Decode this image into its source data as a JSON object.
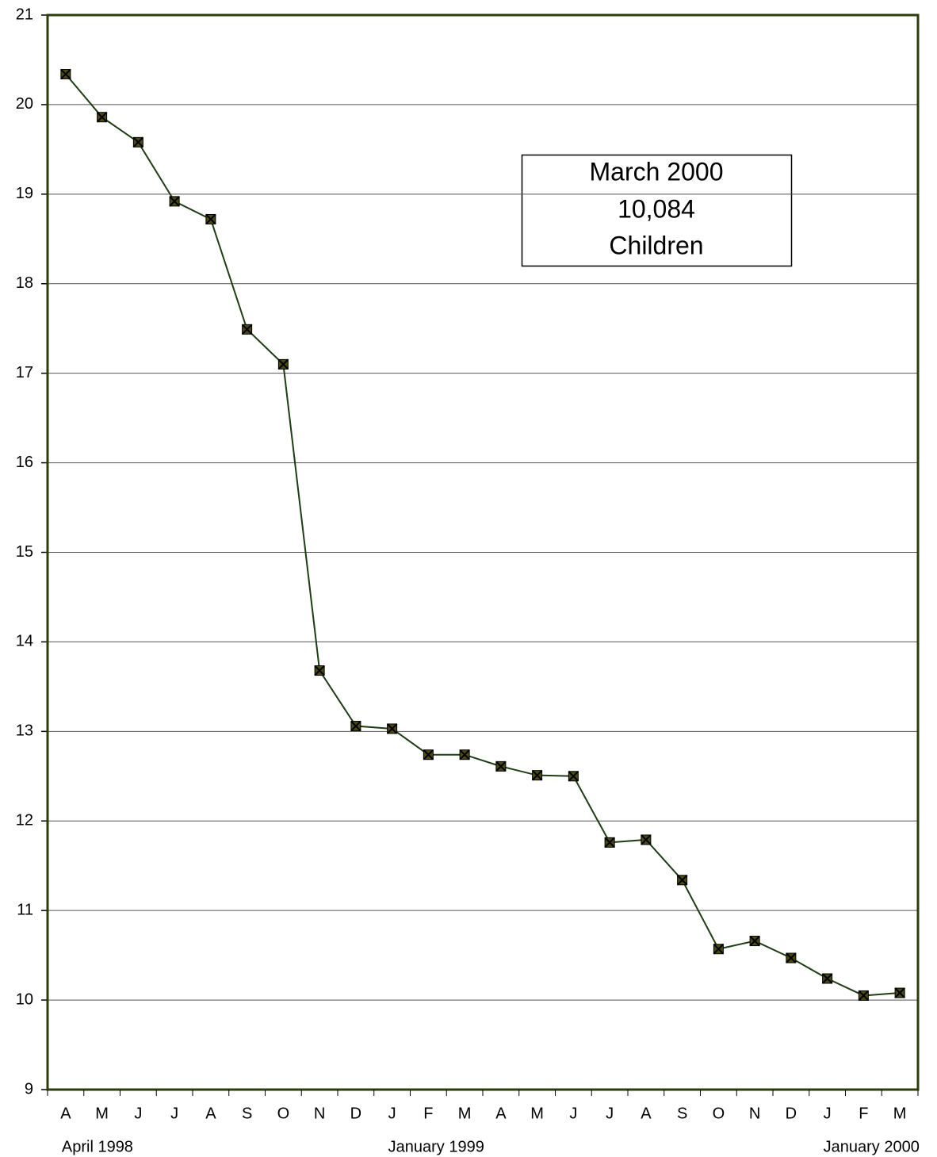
{
  "chart_data": {
    "type": "line",
    "categories": [
      "A",
      "M",
      "J",
      "J",
      "A",
      "S",
      "O",
      "N",
      "D",
      "J",
      "F",
      "M",
      "A",
      "M",
      "J",
      "J",
      "A",
      "S",
      "O",
      "N",
      "D",
      "J",
      "F",
      "M"
    ],
    "series": [
      {
        "color": "#1e3d14",
        "values": [
          20.34,
          19.86,
          19.58,
          18.92,
          18.72,
          17.49,
          17.1,
          13.68,
          13.06,
          13.03,
          12.74,
          12.74,
          12.61,
          12.51,
          12.5,
          11.76,
          11.79,
          11.34,
          10.57,
          10.66,
          10.47,
          10.24,
          10.05,
          10.08
        ]
      }
    ],
    "ylim": [
      9,
      21
    ],
    "yticks": [
      9,
      10,
      11,
      12,
      13,
      14,
      15,
      16,
      17,
      18,
      19,
      20,
      21
    ],
    "grid": true,
    "x_group_labels": [
      "April 1998",
      "January 1999",
      "January 2000"
    ],
    "annotation": [
      "March  2000",
      "10,084",
      "Children"
    ]
  }
}
